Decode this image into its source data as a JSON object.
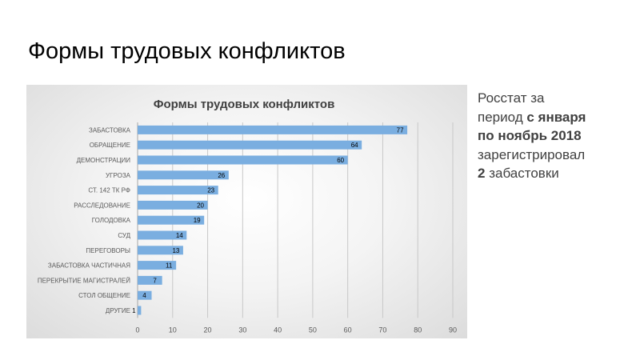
{
  "slide": {
    "title": "Формы трудовых конфликтов",
    "note": {
      "line1": "Росстат за",
      "line2_prefix": "период ",
      "line2_bold": "с января",
      "line3_bold": "по ноябрь 2018",
      "line4": "зарегистрировал",
      "line5_bold": "2",
      "line5_rest": " забастовки"
    }
  },
  "chart_data": {
    "type": "bar",
    "orientation": "horizontal",
    "title": "Формы трудовых конфликтов",
    "categories": [
      "ЗАБАСТОВКА",
      "ОБРАЩЕНИЕ",
      "ДЕМОНСТРАЦИИ",
      "УГРОЗА",
      "СТ. 142 ТК РФ",
      "РАССЛЕДОВАНИЕ",
      "ГОЛОДОВКА",
      "СУД",
      "ПЕРЕГОВОРЫ",
      "ЗАБАСТОВКА ЧАСТИЧНАЯ",
      "ПЕРЕКРЫТИЕ МАГИСТРАЛЕЙ",
      "СТОЛ ОБЩЕНИЕ",
      "ДРУГИЕ"
    ],
    "values": [
      77,
      64,
      60,
      26,
      23,
      20,
      19,
      14,
      13,
      11,
      7,
      4,
      1
    ],
    "xlim": [
      0,
      90
    ],
    "x_ticks": [
      0,
      10,
      20,
      30,
      40,
      50,
      60,
      70,
      80,
      90
    ],
    "grid": true,
    "legend": "none",
    "data_labels": true,
    "colors": {
      "bar": "#7aaee0",
      "grid": "#c8c8c8",
      "axis_text": "#595959",
      "title_text": "#404040"
    }
  }
}
